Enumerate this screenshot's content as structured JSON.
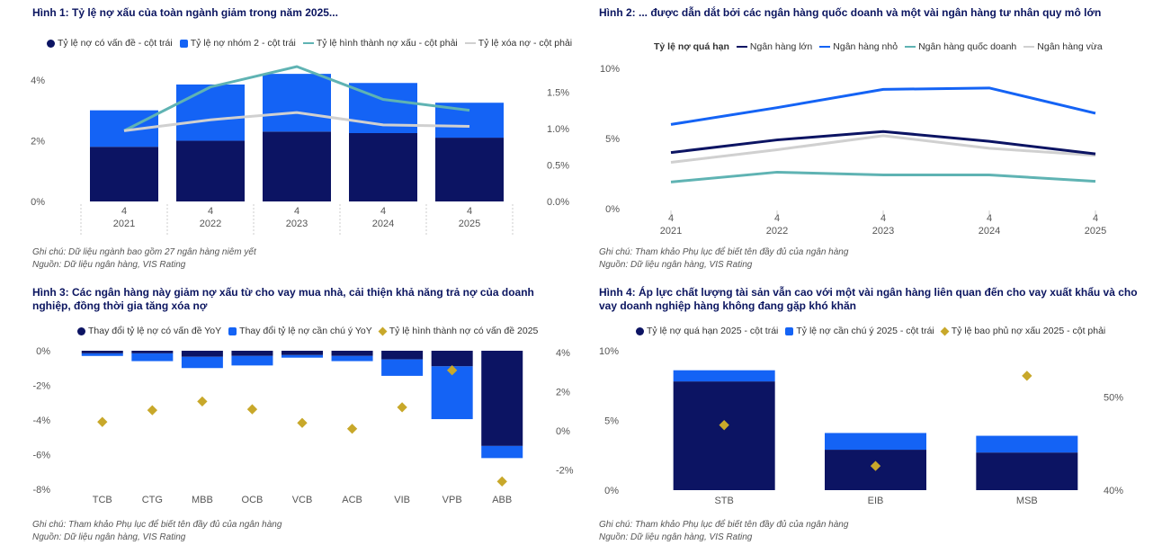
{
  "colors": {
    "navy": "#0c1463",
    "blue": "#1463f5",
    "teal": "#5fb3b3",
    "lightgray": "#d0d0d0",
    "gold": "#c8a82a",
    "title": "#0b1560"
  },
  "panels": [
    {
      "title": "Hình 1: Tỷ lệ nợ xấu của toàn ngành giảm trong năm 2025...",
      "legend": [
        {
          "label": "Tỷ lệ nợ có vấn đề - cột trái",
          "shape": "dot",
          "color": "#0c1463"
        },
        {
          "label": "Tỷ lệ nợ nhóm 2 - cột trái",
          "shape": "square",
          "color": "#1463f5"
        },
        {
          "label": "Tỷ lệ hình thành nợ xấu - cột phải",
          "shape": "line",
          "color": "#5fb3b3"
        },
        {
          "label": "Tỷ lệ xóa nợ - cột phải",
          "shape": "line",
          "color": "#d0d0d0"
        }
      ],
      "note": "Ghi chú: Dữ liệu ngành bao gồm 27 ngân hàng niêm yết",
      "source": "Nguồn: Dữ liệu ngân hàng, VIS Rating"
    },
    {
      "title": "Hình 2: ... được dẫn dắt bởi các ngân hàng quốc doanh và một vài ngân hàng tư nhân quy mô lớn",
      "legend_title": "Tỷ lệ nợ quá hạn",
      "legend": [
        {
          "label": "Ngân hàng lớn",
          "shape": "line",
          "color": "#0c1463"
        },
        {
          "label": "Ngân hàng nhỏ",
          "shape": "line",
          "color": "#1463f5"
        },
        {
          "label": "Ngân hàng quốc doanh",
          "shape": "line",
          "color": "#5fb3b3"
        },
        {
          "label": "Ngân hàng vừa",
          "shape": "line",
          "color": "#d0d0d0"
        }
      ],
      "note": "Ghi chú: Tham khảo Phụ lục để biết tên đầy đủ của ngân hàng",
      "source": "Nguồn: Dữ liệu ngân hàng, VIS Rating"
    },
    {
      "title": "Hình 3: Các ngân hàng này giảm nợ xấu từ cho vay mua nhà, cải thiện khả năng trả nợ của doanh nghiệp, đồng thời gia tăng xóa nợ",
      "legend": [
        {
          "label": "Thay đổi tỷ lệ nợ có vấn đề YoY",
          "shape": "dot",
          "color": "#0c1463"
        },
        {
          "label": "Thay đổi tỷ lệ nợ cần chú ý YoY",
          "shape": "square",
          "color": "#1463f5"
        },
        {
          "label": "Tỷ lệ hình thành nợ có vấn đề 2025",
          "shape": "diamond",
          "color": "#c8a82a"
        }
      ],
      "note": "Ghi chú: Tham khảo Phụ lục để biết tên đầy đủ của ngân hàng",
      "source": "Nguồn: Dữ liệu ngân hàng, VIS Rating"
    },
    {
      "title": "Hình 4: Áp lực chất lượng tài sản vẫn cao với một vài ngân hàng liên quan đến cho vay xuất khẩu và cho vay doanh nghiệp hàng không đang gặp khó khăn",
      "legend": [
        {
          "label": "Tỷ lệ nợ quá hạn 2025 - cột trái",
          "shape": "dot",
          "color": "#0c1463"
        },
        {
          "label": "Tỷ lệ nợ cần chú ý 2025 - cột trái",
          "shape": "square",
          "color": "#1463f5"
        },
        {
          "label": "Tỷ lệ bao phủ nợ xấu 2025 - cột phải",
          "shape": "diamond",
          "color": "#c8a82a"
        }
      ],
      "note": "Ghi chú: Tham khảo Phụ lục để biết tên đầy đủ của ngân hàng",
      "source": "Nguồn: Dữ liệu ngân hàng, VIS Rating"
    }
  ],
  "chart_data": [
    {
      "type": "bar",
      "stacked": true,
      "categories": [
        [
          "4",
          "2021"
        ],
        [
          "4",
          "2022"
        ],
        [
          "4",
          "2023"
        ],
        [
          "4",
          "2024"
        ],
        [
          "4",
          "2025"
        ]
      ],
      "series": [
        {
          "name": "Tỷ lệ nợ có vấn đề - cột trái",
          "axis": "left",
          "values": [
            1.8,
            2.0,
            2.3,
            2.25,
            2.1
          ]
        },
        {
          "name": "Tỷ lệ nợ nhóm 2 - cột trái",
          "axis": "left",
          "values": [
            1.2,
            1.85,
            1.9,
            1.65,
            1.15
          ]
        },
        {
          "name": "Tỷ lệ hình thành nợ xấu - cột phải",
          "axis": "right",
          "type": "line",
          "values": [
            0.97,
            1.57,
            1.85,
            1.4,
            1.25
          ]
        },
        {
          "name": "Tỷ lệ xóa nợ - cột phải",
          "axis": "right",
          "type": "line",
          "values": [
            0.97,
            1.12,
            1.22,
            1.05,
            1.03
          ]
        }
      ],
      "y_left": {
        "ticks": [
          "0%",
          "2%",
          "4%"
        ],
        "range": [
          0,
          4.5
        ],
        "tick_values": [
          0,
          2,
          4
        ]
      },
      "y_right": {
        "ticks": [
          "0.0%",
          "0.5%",
          "1.0%",
          "1.5%"
        ],
        "range": [
          0,
          1.875
        ],
        "tick_values": [
          0,
          0.5,
          1.0,
          1.5
        ]
      }
    },
    {
      "type": "line",
      "categories": [
        [
          "4",
          "2021"
        ],
        [
          "4",
          "2022"
        ],
        [
          "4",
          "2023"
        ],
        [
          "4",
          "2024"
        ],
        [
          "4",
          "2025"
        ]
      ],
      "series": [
        {
          "name": "Ngân hàng lớn",
          "values": [
            4.0,
            4.9,
            5.5,
            4.8,
            3.9
          ]
        },
        {
          "name": "Ngân hàng nhỏ",
          "values": [
            6.0,
            7.2,
            8.5,
            8.6,
            6.8
          ]
        },
        {
          "name": "Ngân hàng quốc doanh",
          "values": [
            1.9,
            2.6,
            2.4,
            2.4,
            1.95
          ]
        },
        {
          "name": "Ngân hàng vừa",
          "values": [
            3.3,
            4.2,
            5.2,
            4.3,
            3.8
          ]
        }
      ],
      "y": {
        "ticks": [
          "0%",
          "5%",
          "10%"
        ],
        "range": [
          0,
          10
        ],
        "tick_values": [
          0,
          5,
          10
        ]
      }
    },
    {
      "type": "bar",
      "stacked": true,
      "categories": [
        "TCB",
        "CTG",
        "MBB",
        "OCB",
        "VCB",
        "ACB",
        "VIB",
        "VPB",
        "ABB"
      ],
      "series": [
        {
          "name": "Thay đổi tỷ lệ nợ có vấn đề YoY",
          "axis": "left",
          "values": [
            -0.15,
            -0.15,
            -0.35,
            -0.3,
            -0.25,
            -0.3,
            -0.5,
            -0.9,
            -5.5
          ]
        },
        {
          "name": "Thay đổi tỷ lệ nợ cần chú ý YoY",
          "axis": "left",
          "values": [
            -0.15,
            -0.45,
            -0.65,
            -0.55,
            -0.15,
            -0.3,
            -0.95,
            -3.05,
            -0.7
          ]
        },
        {
          "name": "Tỷ lệ hình thành nợ có vấn đề 2025",
          "axis": "right",
          "type": "scatter",
          "values": [
            0.45,
            1.05,
            1.5,
            1.1,
            0.4,
            0.1,
            1.2,
            3.1,
            -2.6
          ]
        }
      ],
      "y_left": {
        "ticks": [
          "0%",
          "-2%",
          "-4%",
          "-6%",
          "-8%"
        ],
        "range": [
          -8,
          0
        ],
        "tick_values": [
          0,
          -2,
          -4,
          -6,
          -8
        ]
      },
      "y_right": {
        "ticks": [
          "4%",
          "2%",
          "0%",
          "-2%"
        ],
        "range": [
          -3,
          4.1
        ],
        "tick_values": [
          4,
          2,
          0,
          -2
        ]
      }
    },
    {
      "type": "bar",
      "stacked": true,
      "categories": [
        "STB",
        "EIB",
        "MSB"
      ],
      "series": [
        {
          "name": "Tỷ lệ nợ quá hạn 2025 - cột trái",
          "axis": "left",
          "values": [
            7.8,
            2.9,
            2.7
          ]
        },
        {
          "name": "Tỷ lệ nợ cần chú ý 2025 - cột trái",
          "axis": "left",
          "values": [
            0.8,
            1.2,
            1.2
          ]
        },
        {
          "name": "Tỷ lệ bao phủ nợ xấu 2025 - cột phải",
          "axis": "right",
          "type": "scatter",
          "values": [
            47.0,
            42.6,
            52.3
          ]
        }
      ],
      "y_left": {
        "ticks": [
          "0%",
          "5%",
          "10%"
        ],
        "range": [
          0,
          10
        ],
        "tick_values": [
          0,
          5,
          10
        ]
      },
      "y_right": {
        "ticks": [
          "40%",
          "50%"
        ],
        "range": [
          40,
          55
        ],
        "tick_values": [
          40,
          50
        ]
      }
    }
  ]
}
